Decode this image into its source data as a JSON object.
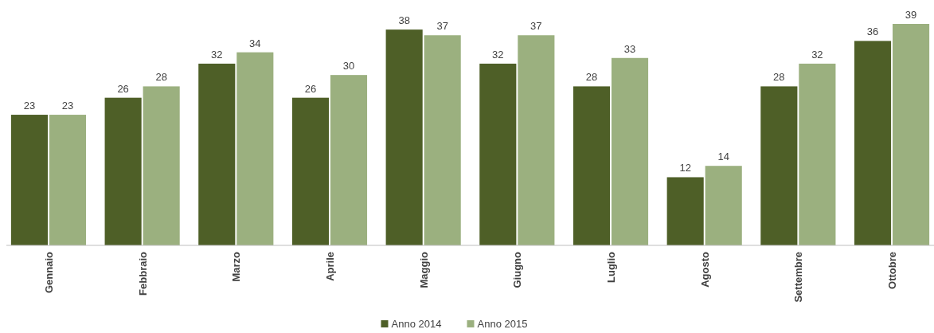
{
  "chart_data": {
    "type": "bar",
    "categories": [
      "Gennaio",
      "Febbraio",
      "Marzo",
      "Aprile",
      "Maggio",
      "Giugno",
      "Luglio",
      "Agosto",
      "Settembre",
      "Ottobre"
    ],
    "series": [
      {
        "name": "Anno 2014",
        "color": "#4e5f27",
        "values": [
          23,
          26,
          32,
          26,
          38,
          32,
          28,
          12,
          28,
          36
        ]
      },
      {
        "name": "Anno 2015",
        "color": "#9bb07f",
        "values": [
          23,
          28,
          34,
          30,
          37,
          37,
          33,
          14,
          32,
          39
        ]
      }
    ],
    "data_labels": true,
    "legend": "bottom",
    "grid": false
  }
}
